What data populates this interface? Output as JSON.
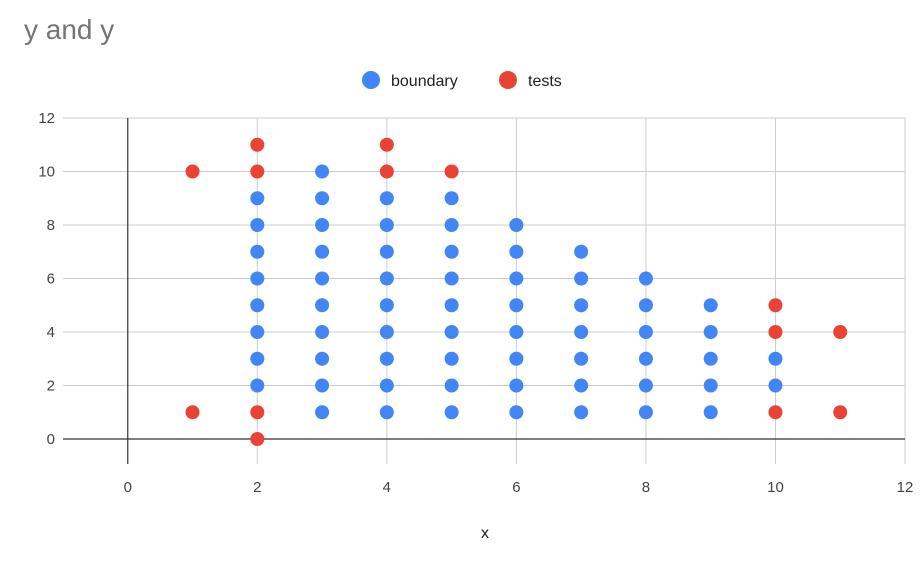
{
  "chart_data": {
    "type": "scatter",
    "title": "y and y",
    "xlabel": "x",
    "ylabel": "",
    "xlim": [
      -1,
      12
    ],
    "ylim": [
      0,
      12
    ],
    "x_ticks": [
      0,
      2,
      4,
      6,
      8,
      10,
      12
    ],
    "y_ticks": [
      0,
      2,
      4,
      6,
      8,
      10,
      12
    ],
    "grid": true,
    "legend_position": "top",
    "series": [
      {
        "name": "boundary",
        "color": "#4285f4",
        "points": [
          [
            2,
            2
          ],
          [
            2,
            3
          ],
          [
            2,
            4
          ],
          [
            2,
            5
          ],
          [
            2,
            6
          ],
          [
            2,
            7
          ],
          [
            2,
            8
          ],
          [
            2,
            9
          ],
          [
            3,
            1
          ],
          [
            3,
            2
          ],
          [
            3,
            3
          ],
          [
            3,
            4
          ],
          [
            3,
            5
          ],
          [
            3,
            6
          ],
          [
            3,
            7
          ],
          [
            3,
            8
          ],
          [
            3,
            9
          ],
          [
            3,
            10
          ],
          [
            4,
            1
          ],
          [
            4,
            2
          ],
          [
            4,
            3
          ],
          [
            4,
            4
          ],
          [
            4,
            5
          ],
          [
            4,
            6
          ],
          [
            4,
            7
          ],
          [
            4,
            8
          ],
          [
            4,
            9
          ],
          [
            5,
            1
          ],
          [
            5,
            2
          ],
          [
            5,
            3
          ],
          [
            5,
            4
          ],
          [
            5,
            5
          ],
          [
            5,
            6
          ],
          [
            5,
            7
          ],
          [
            5,
            8
          ],
          [
            5,
            9
          ],
          [
            6,
            1
          ],
          [
            6,
            2
          ],
          [
            6,
            3
          ],
          [
            6,
            4
          ],
          [
            6,
            5
          ],
          [
            6,
            6
          ],
          [
            6,
            7
          ],
          [
            6,
            8
          ],
          [
            7,
            1
          ],
          [
            7,
            2
          ],
          [
            7,
            3
          ],
          [
            7,
            4
          ],
          [
            7,
            5
          ],
          [
            7,
            6
          ],
          [
            7,
            7
          ],
          [
            8,
            1
          ],
          [
            8,
            2
          ],
          [
            8,
            3
          ],
          [
            8,
            4
          ],
          [
            8,
            5
          ],
          [
            8,
            6
          ],
          [
            9,
            1
          ],
          [
            9,
            2
          ],
          [
            9,
            3
          ],
          [
            9,
            4
          ],
          [
            9,
            5
          ],
          [
            10,
            2
          ],
          [
            10,
            3
          ]
        ]
      },
      {
        "name": "tests",
        "color": "#ea4335",
        "points": [
          [
            1,
            10
          ],
          [
            1,
            1
          ],
          [
            2,
            11
          ],
          [
            2,
            10
          ],
          [
            2,
            1
          ],
          [
            2,
            0
          ],
          [
            4,
            11
          ],
          [
            4,
            10
          ],
          [
            5,
            10
          ],
          [
            10,
            5
          ],
          [
            10,
            4
          ],
          [
            10,
            1
          ],
          [
            11,
            4
          ],
          [
            11,
            1
          ]
        ]
      }
    ]
  }
}
